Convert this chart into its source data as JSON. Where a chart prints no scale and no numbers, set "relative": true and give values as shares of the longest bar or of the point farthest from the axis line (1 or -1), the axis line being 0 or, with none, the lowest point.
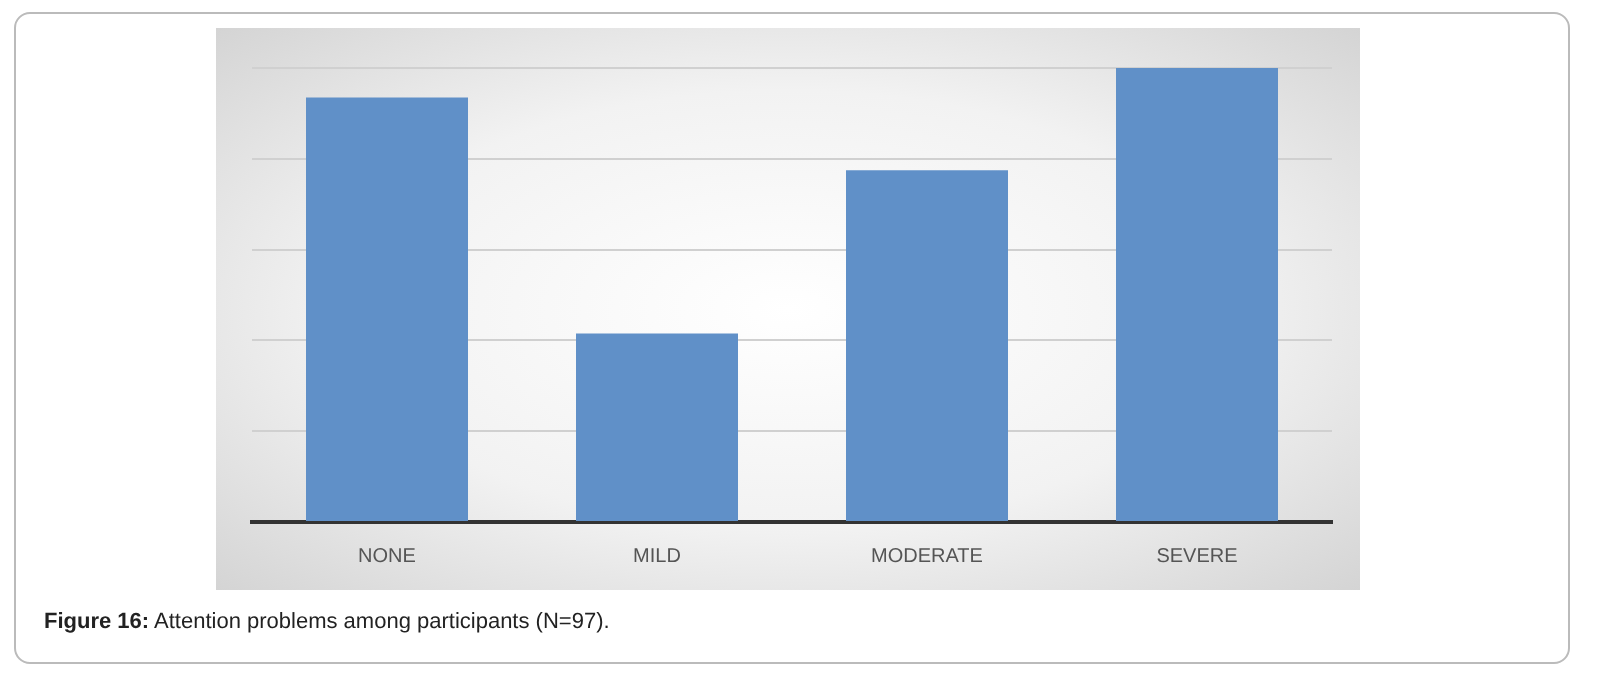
{
  "chart_data": {
    "type": "bar",
    "relative": true,
    "categories": [
      "NONE",
      "MILD",
      "MODERATE",
      "SEVERE"
    ],
    "values": [
      0.935,
      0.415,
      0.775,
      1
    ],
    "color": "#6090c8",
    "grid": "y",
    "annotations": [
      "Figure 16: Attention problems among participants (N=97)."
    ]
  }
}
